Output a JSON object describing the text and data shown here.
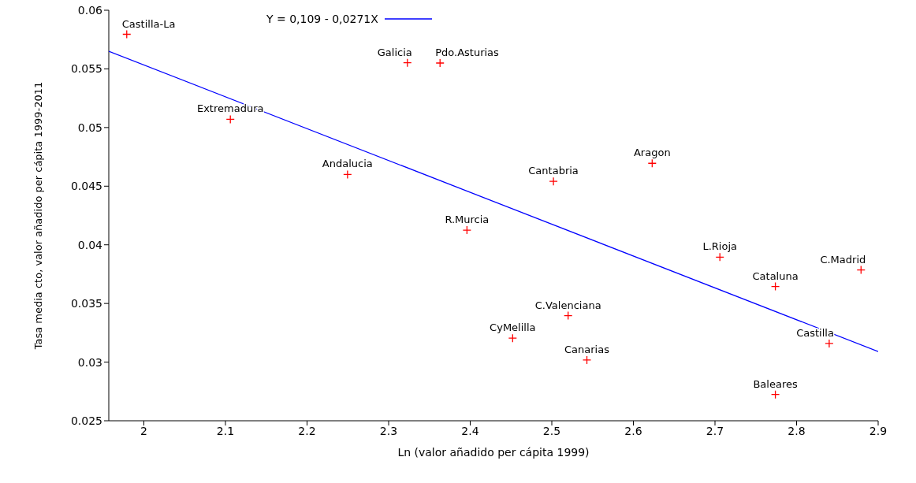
{
  "chart_data": {
    "type": "scatter",
    "xlabel": "Ln (valor añadido per cápita 1999)",
    "ylabel": "Tasa media cto, valor añadido per cápita 1999-2011",
    "xlim": [
      1.957,
      2.9
    ],
    "ylim": [
      0.025,
      0.06
    ],
    "xticks": [
      2,
      2.1,
      2.2,
      2.3,
      2.4,
      2.5,
      2.6,
      2.7,
      2.8,
      2.9
    ],
    "yticks": [
      0.025,
      0.03,
      0.035,
      0.04,
      0.045,
      0.05,
      0.055,
      0.06
    ],
    "grid": false,
    "legend": "top left",
    "marker": "cross",
    "x": [
      1.979,
      2.106,
      2.2496,
      2.323,
      2.363,
      2.396,
      2.452,
      2.502,
      2.52,
      2.543,
      2.623,
      2.706,
      2.774,
      2.774,
      2.84,
      2.879
    ],
    "series": [
      {
        "color": "#ff0000",
        "values": [
          0.05795,
          0.0507,
          0.046,
          0.05552,
          0.0555,
          0.04125,
          0.03204,
          0.04541,
          0.03396,
          0.03018,
          0.04695,
          0.03895,
          0.03645,
          0.02724,
          0.03159,
          0.03786
        ]
      },
      {
        "type": "line",
        "name": "Y = 0,109 - 0,0271X",
        "color": "#0000ff",
        "marker": "none",
        "x": [
          1.957,
          2.9
        ],
        "values": [
          0.0565,
          0.0309
        ]
      }
    ],
    "annotations": [
      {
        "text": "Castilla-La",
        "x": 1.979,
        "y": 0.05795
      },
      {
        "text": "Extremadura",
        "x": 2.106,
        "y": 0.0507
      },
      {
        "text": "Andalucia",
        "x": 2.2496,
        "y": 0.046
      },
      {
        "text": "Galicia",
        "x": 2.323,
        "y": 0.05552
      },
      {
        "text": "Pdo.Asturias",
        "x": 2.363,
        "y": 0.0555
      },
      {
        "text": "R.Murcia",
        "x": 2.396,
        "y": 0.04125
      },
      {
        "text": "CyMelilla",
        "x": 2.452,
        "y": 0.03204
      },
      {
        "text": "Cantabria",
        "x": 2.502,
        "y": 0.04541
      },
      {
        "text": "C.Valenciana",
        "x": 2.52,
        "y": 0.03396
      },
      {
        "text": "Canarias",
        "x": 2.543,
        "y": 0.03018
      },
      {
        "text": "Aragon",
        "x": 2.623,
        "y": 0.04695
      },
      {
        "text": "L.Rioja",
        "x": 2.706,
        "y": 0.03895
      },
      {
        "text": "Cataluna",
        "x": 2.774,
        "y": 0.03645
      },
      {
        "text": "Baleares",
        "x": 2.774,
        "y": 0.02724
      },
      {
        "text": "Castilla",
        "x": 2.84,
        "y": 0.03159
      },
      {
        "text": "C.Madrid",
        "x": 2.879,
        "y": 0.03786
      }
    ]
  }
}
